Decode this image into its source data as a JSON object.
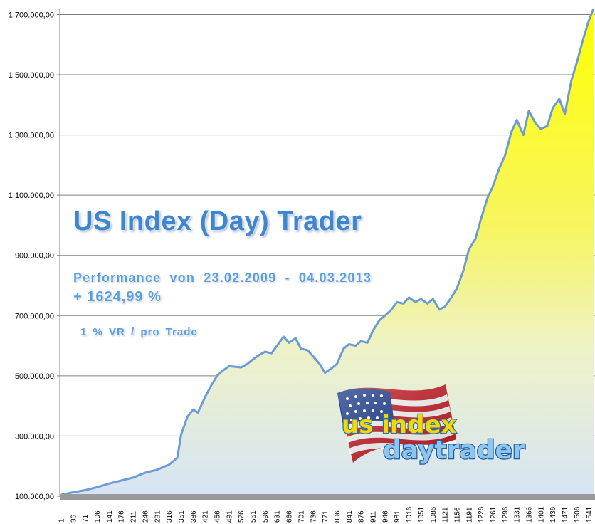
{
  "chart_data": {
    "type": "area",
    "title": "",
    "xlabel": "",
    "ylabel": "",
    "ylim": [
      100000,
      1720000
    ],
    "xlim": [
      1,
      1555
    ],
    "y_ticks": [
      "100.000,00",
      "300.000,00",
      "500.000,00",
      "700.000,00",
      "900.000,00",
      "1.100.000,00",
      "1.300.000,00",
      "1.500.000,00",
      "1.700.000,00"
    ],
    "y_tick_values": [
      100000,
      300000,
      500000,
      700000,
      900000,
      1100000,
      1300000,
      1500000,
      1700000
    ],
    "x_ticks": [
      "1",
      "36",
      "71",
      "106",
      "141",
      "176",
      "211",
      "246",
      "281",
      "316",
      "351",
      "386",
      "421",
      "456",
      "491",
      "526",
      "561",
      "596",
      "631",
      "666",
      "701",
      "736",
      "771",
      "806",
      "841",
      "876",
      "911",
      "946",
      "981",
      "1016",
      "1051",
      "1086",
      "1121",
      "1156",
      "1191",
      "1226",
      "1261",
      "1296",
      "1331",
      "1366",
      "1401",
      "1436",
      "1471",
      "1506",
      "1541"
    ],
    "grid": "horizontal",
    "legend": "none",
    "series": [
      {
        "x": [
          1,
          36,
          71,
          106,
          141,
          176,
          211,
          246,
          281,
          316,
          340,
          351,
          370,
          386,
          400,
          421,
          440,
          456,
          470,
          491,
          510,
          526,
          545,
          561,
          580,
          596,
          615,
          631,
          650,
          666,
          685,
          701,
          720,
          736,
          755,
          771,
          790,
          806,
          825,
          841,
          860,
          876,
          895,
          911,
          930,
          946,
          965,
          981,
          1000,
          1016,
          1035,
          1051,
          1070,
          1086,
          1105,
          1121,
          1140,
          1156,
          1175,
          1191,
          1210,
          1226,
          1245,
          1261,
          1280,
          1296,
          1315,
          1331,
          1350,
          1366,
          1385,
          1401,
          1420,
          1436,
          1455,
          1471,
          1490,
          1506,
          1525,
          1541,
          1555
        ],
        "values": [
          105000,
          113000,
          120000,
          130000,
          142000,
          152000,
          162000,
          178000,
          188000,
          205000,
          228000,
          305000,
          365000,
          388000,
          378000,
          430000,
          470000,
          500000,
          515000,
          532000,
          530000,
          528000,
          540000,
          555000,
          570000,
          580000,
          575000,
          600000,
          630000,
          610000,
          625000,
          590000,
          585000,
          565000,
          540000,
          510000,
          525000,
          540000,
          590000,
          605000,
          600000,
          615000,
          610000,
          650000,
          685000,
          700000,
          720000,
          745000,
          740000,
          760000,
          745000,
          755000,
          740000,
          755000,
          720000,
          730000,
          760000,
          790000,
          850000,
          920000,
          955000,
          1020000,
          1090000,
          1130000,
          1190000,
          1230000,
          1310000,
          1350000,
          1300000,
          1380000,
          1340000,
          1320000,
          1330000,
          1390000,
          1420000,
          1370000,
          1480000,
          1540000,
          1620000,
          1680000,
          1720000
        ]
      }
    ],
    "colors": {
      "fill_top": "#ffff00",
      "fill_bottom": "#dde8f6",
      "line": "#6b9bd6",
      "grid": "#808080",
      "axis_band": "#9a9a9a"
    }
  },
  "overlay": {
    "title": "US Index (Day) Trader",
    "performance": "Performance  von  23.02.2009 - 04.03.2013",
    "gain": "+ 1624,99 %",
    "risk": "1 % VR / pro Trade"
  },
  "logo": {
    "line1": "us index",
    "line2": "daytrader",
    "icon": "american-flag-icon"
  }
}
